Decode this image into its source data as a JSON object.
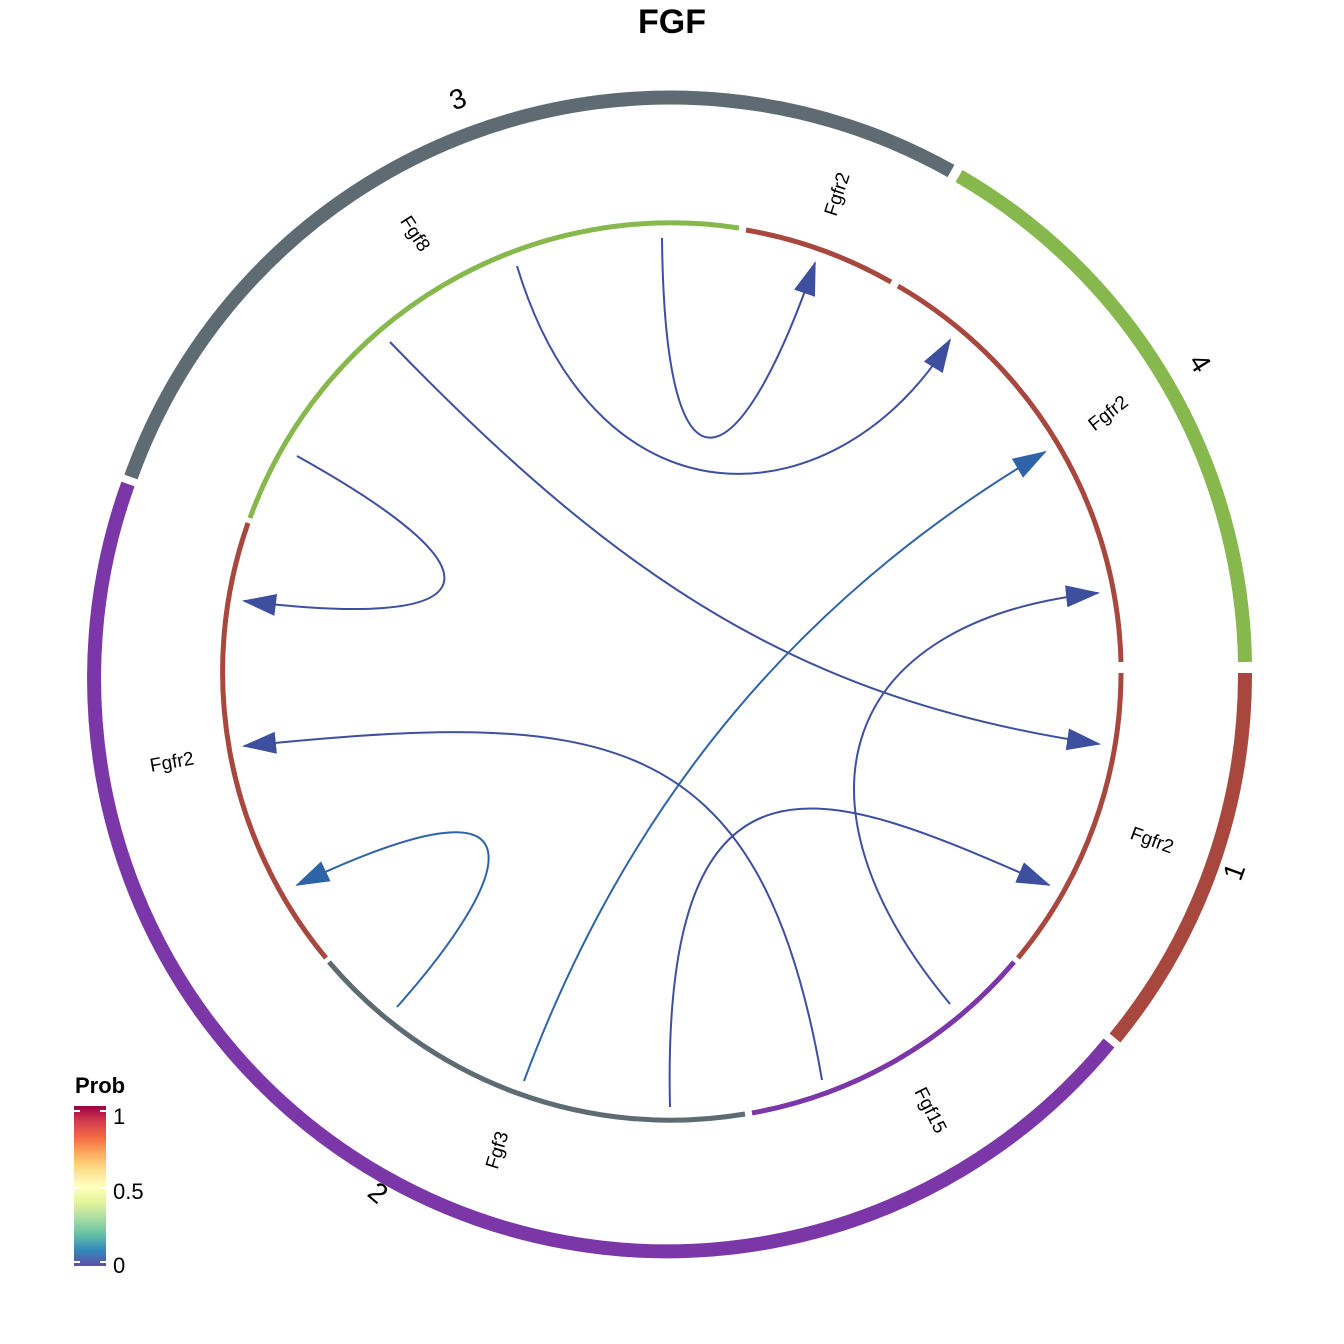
{
  "title": "FGF",
  "clusters": [
    {
      "name": "1",
      "color": "#A8473D"
    },
    {
      "name": "2",
      "color": "#7B36A8"
    },
    {
      "name": "3",
      "color": "#5E6B72"
    },
    {
      "name": "4",
      "color": "#86B84E"
    }
  ],
  "gene_labels": [
    "Fgfr2",
    "Fgfr2",
    "Fgfr2",
    "Fgfr2",
    "Fgf8",
    "Fgf3",
    "Fgf15"
  ],
  "legend": {
    "title": "Prob",
    "ticks": [
      "1",
      "0.5",
      "0"
    ],
    "gradient": [
      "#5E4FA2",
      "#3288BD",
      "#66C2A5",
      "#ABDDA4",
      "#E6F598",
      "#FFFFBF",
      "#FEE08B",
      "#FDAE61",
      "#F46D43",
      "#D53E4F",
      "#9E0142"
    ]
  },
  "chart_data": {
    "type": "chord",
    "title": "FGF",
    "sectors": [
      {
        "cluster": "1",
        "ligand": "",
        "receptor": "Fgfr2"
      },
      {
        "cluster": "2",
        "ligand": "Fgf3, Fgf15",
        "receptor": "Fgfr2"
      },
      {
        "cluster": "3",
        "ligand": "Fgf8",
        "receptor": "Fgfr2"
      },
      {
        "cluster": "4",
        "ligand": "",
        "receptor": "Fgfr2"
      }
    ],
    "links": [
      {
        "ligand": "Fgf8",
        "source": "3",
        "receptor": "Fgfr2",
        "target": "3",
        "prob": 0.03
      },
      {
        "ligand": "Fgf8",
        "source": "3",
        "receptor": "Fgfr2",
        "target": "4",
        "prob": 0.03
      },
      {
        "ligand": "Fgf8",
        "source": "3",
        "receptor": "Fgfr2",
        "target": "2",
        "prob": 0.03
      },
      {
        "ligand": "Fgf8",
        "source": "3",
        "receptor": "Fgfr2",
        "target": "1",
        "prob": 0.03
      },
      {
        "ligand": "Fgf3",
        "source": "2",
        "receptor": "Fgfr2",
        "target": "2",
        "prob": 0.1
      },
      {
        "ligand": "Fgf3",
        "source": "2",
        "receptor": "Fgfr2",
        "target": "4",
        "prob": 0.1
      },
      {
        "ligand": "Fgf3",
        "source": "2",
        "receptor": "Fgfr2",
        "target": "1",
        "prob": 0.03
      },
      {
        "ligand": "Fgf15",
        "source": "2",
        "receptor": "Fgfr2",
        "target": "2",
        "prob": 0.03
      },
      {
        "ligand": "Fgf15",
        "source": "2",
        "receptor": "Fgfr2",
        "target": "1",
        "prob": 0.03
      },
      {
        "ligand": "Fgf15",
        "source": "2",
        "receptor": "Fgfr2",
        "target": "4",
        "prob": 0.03
      }
    ],
    "legend_range": [
      0,
      1
    ]
  }
}
